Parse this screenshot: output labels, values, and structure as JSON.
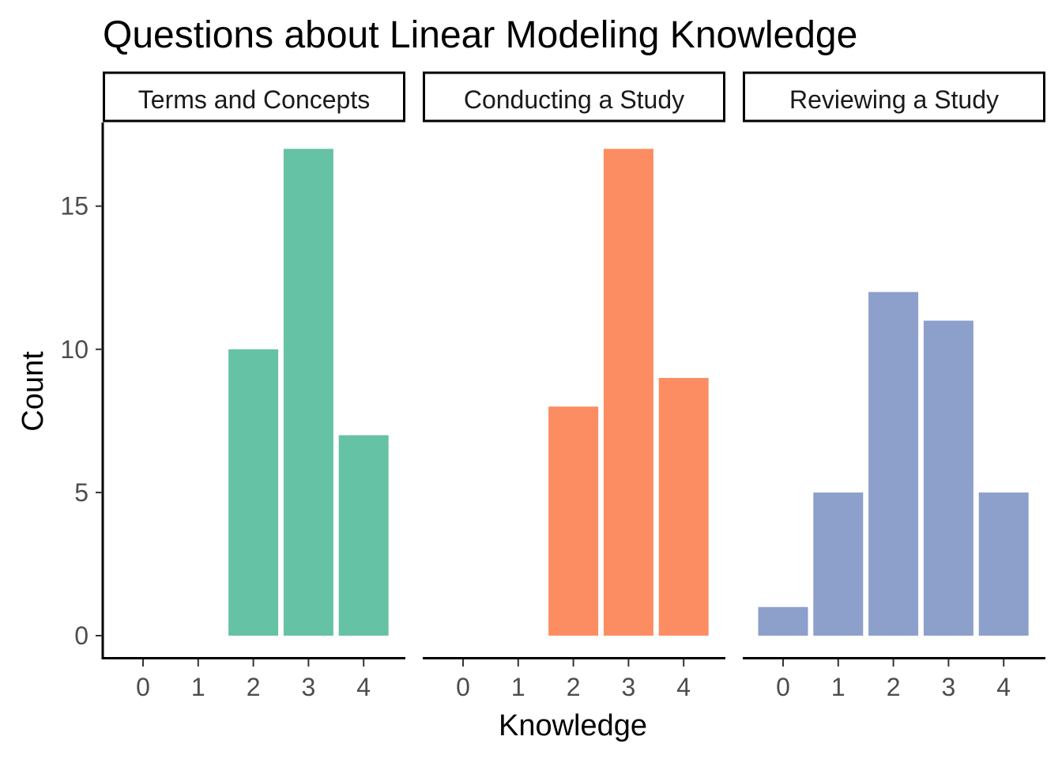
{
  "chart_data": {
    "type": "bar",
    "title": "Questions about Linear Modeling Knowledge",
    "xlabel": "Knowledge",
    "ylabel": "Count",
    "categories": [
      "0",
      "1",
      "2",
      "3",
      "4"
    ],
    "yticks": [
      "0",
      "5",
      "10",
      "15"
    ],
    "ylim": [
      0,
      17.85
    ],
    "grid": false,
    "legend": "none",
    "panels": [
      {
        "name": "Terms and Concepts",
        "color": "#66c2a5",
        "values": [
          0,
          0,
          10,
          17,
          7
        ]
      },
      {
        "name": "Conducting a Study",
        "color": "#fc8d62",
        "values": [
          0,
          0,
          8,
          17,
          9
        ]
      },
      {
        "name": "Reviewing a Study",
        "color": "#8da0cb",
        "values": [
          1,
          5,
          12,
          11,
          5
        ]
      }
    ]
  }
}
